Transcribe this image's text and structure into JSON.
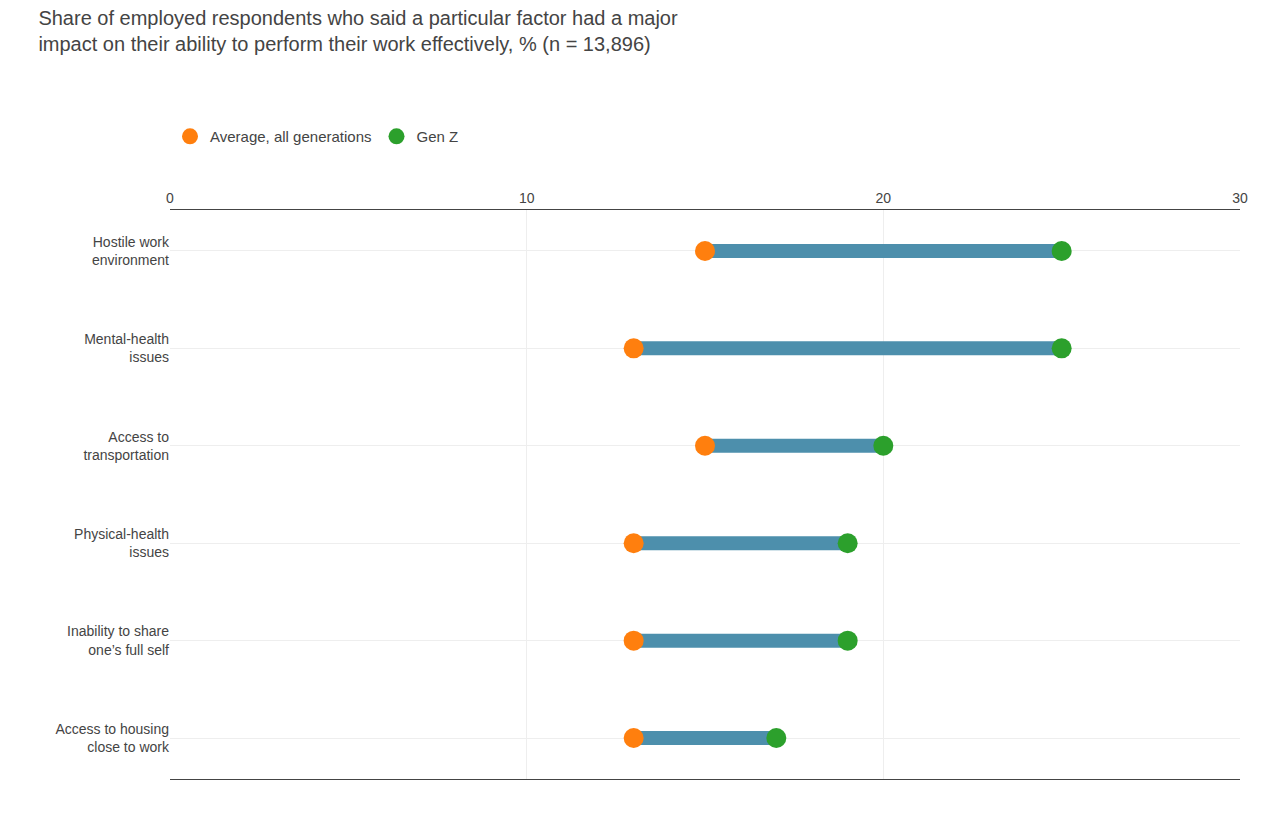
{
  "chart_data": {
    "type": "dumbbell",
    "title": "Share of employed respondents who said a particular factor had a major\nimpact on their ability to perform their work effectively, % (n = 13,896)",
    "orientation": "horizontal",
    "categories": [
      "Hostile work\nenvironment",
      "Mental-health\nissues",
      "Access to\ntransportation",
      "Physical-health\nissues",
      "Inability to share\none’s full self",
      "Access to housing\nclose to work"
    ],
    "series": [
      {
        "name": "Average, all generations",
        "values": [
          15,
          13,
          15,
          13,
          13,
          13
        ]
      },
      {
        "name": "Gen Z",
        "values": [
          25,
          25,
          20,
          19,
          19,
          17
        ]
      }
    ],
    "color": "#4d8fac",
    "xlim": [
      0,
      30
    ],
    "xticks": [
      0,
      10,
      20,
      30
    ],
    "grid": true,
    "legend": "upper left"
  }
}
